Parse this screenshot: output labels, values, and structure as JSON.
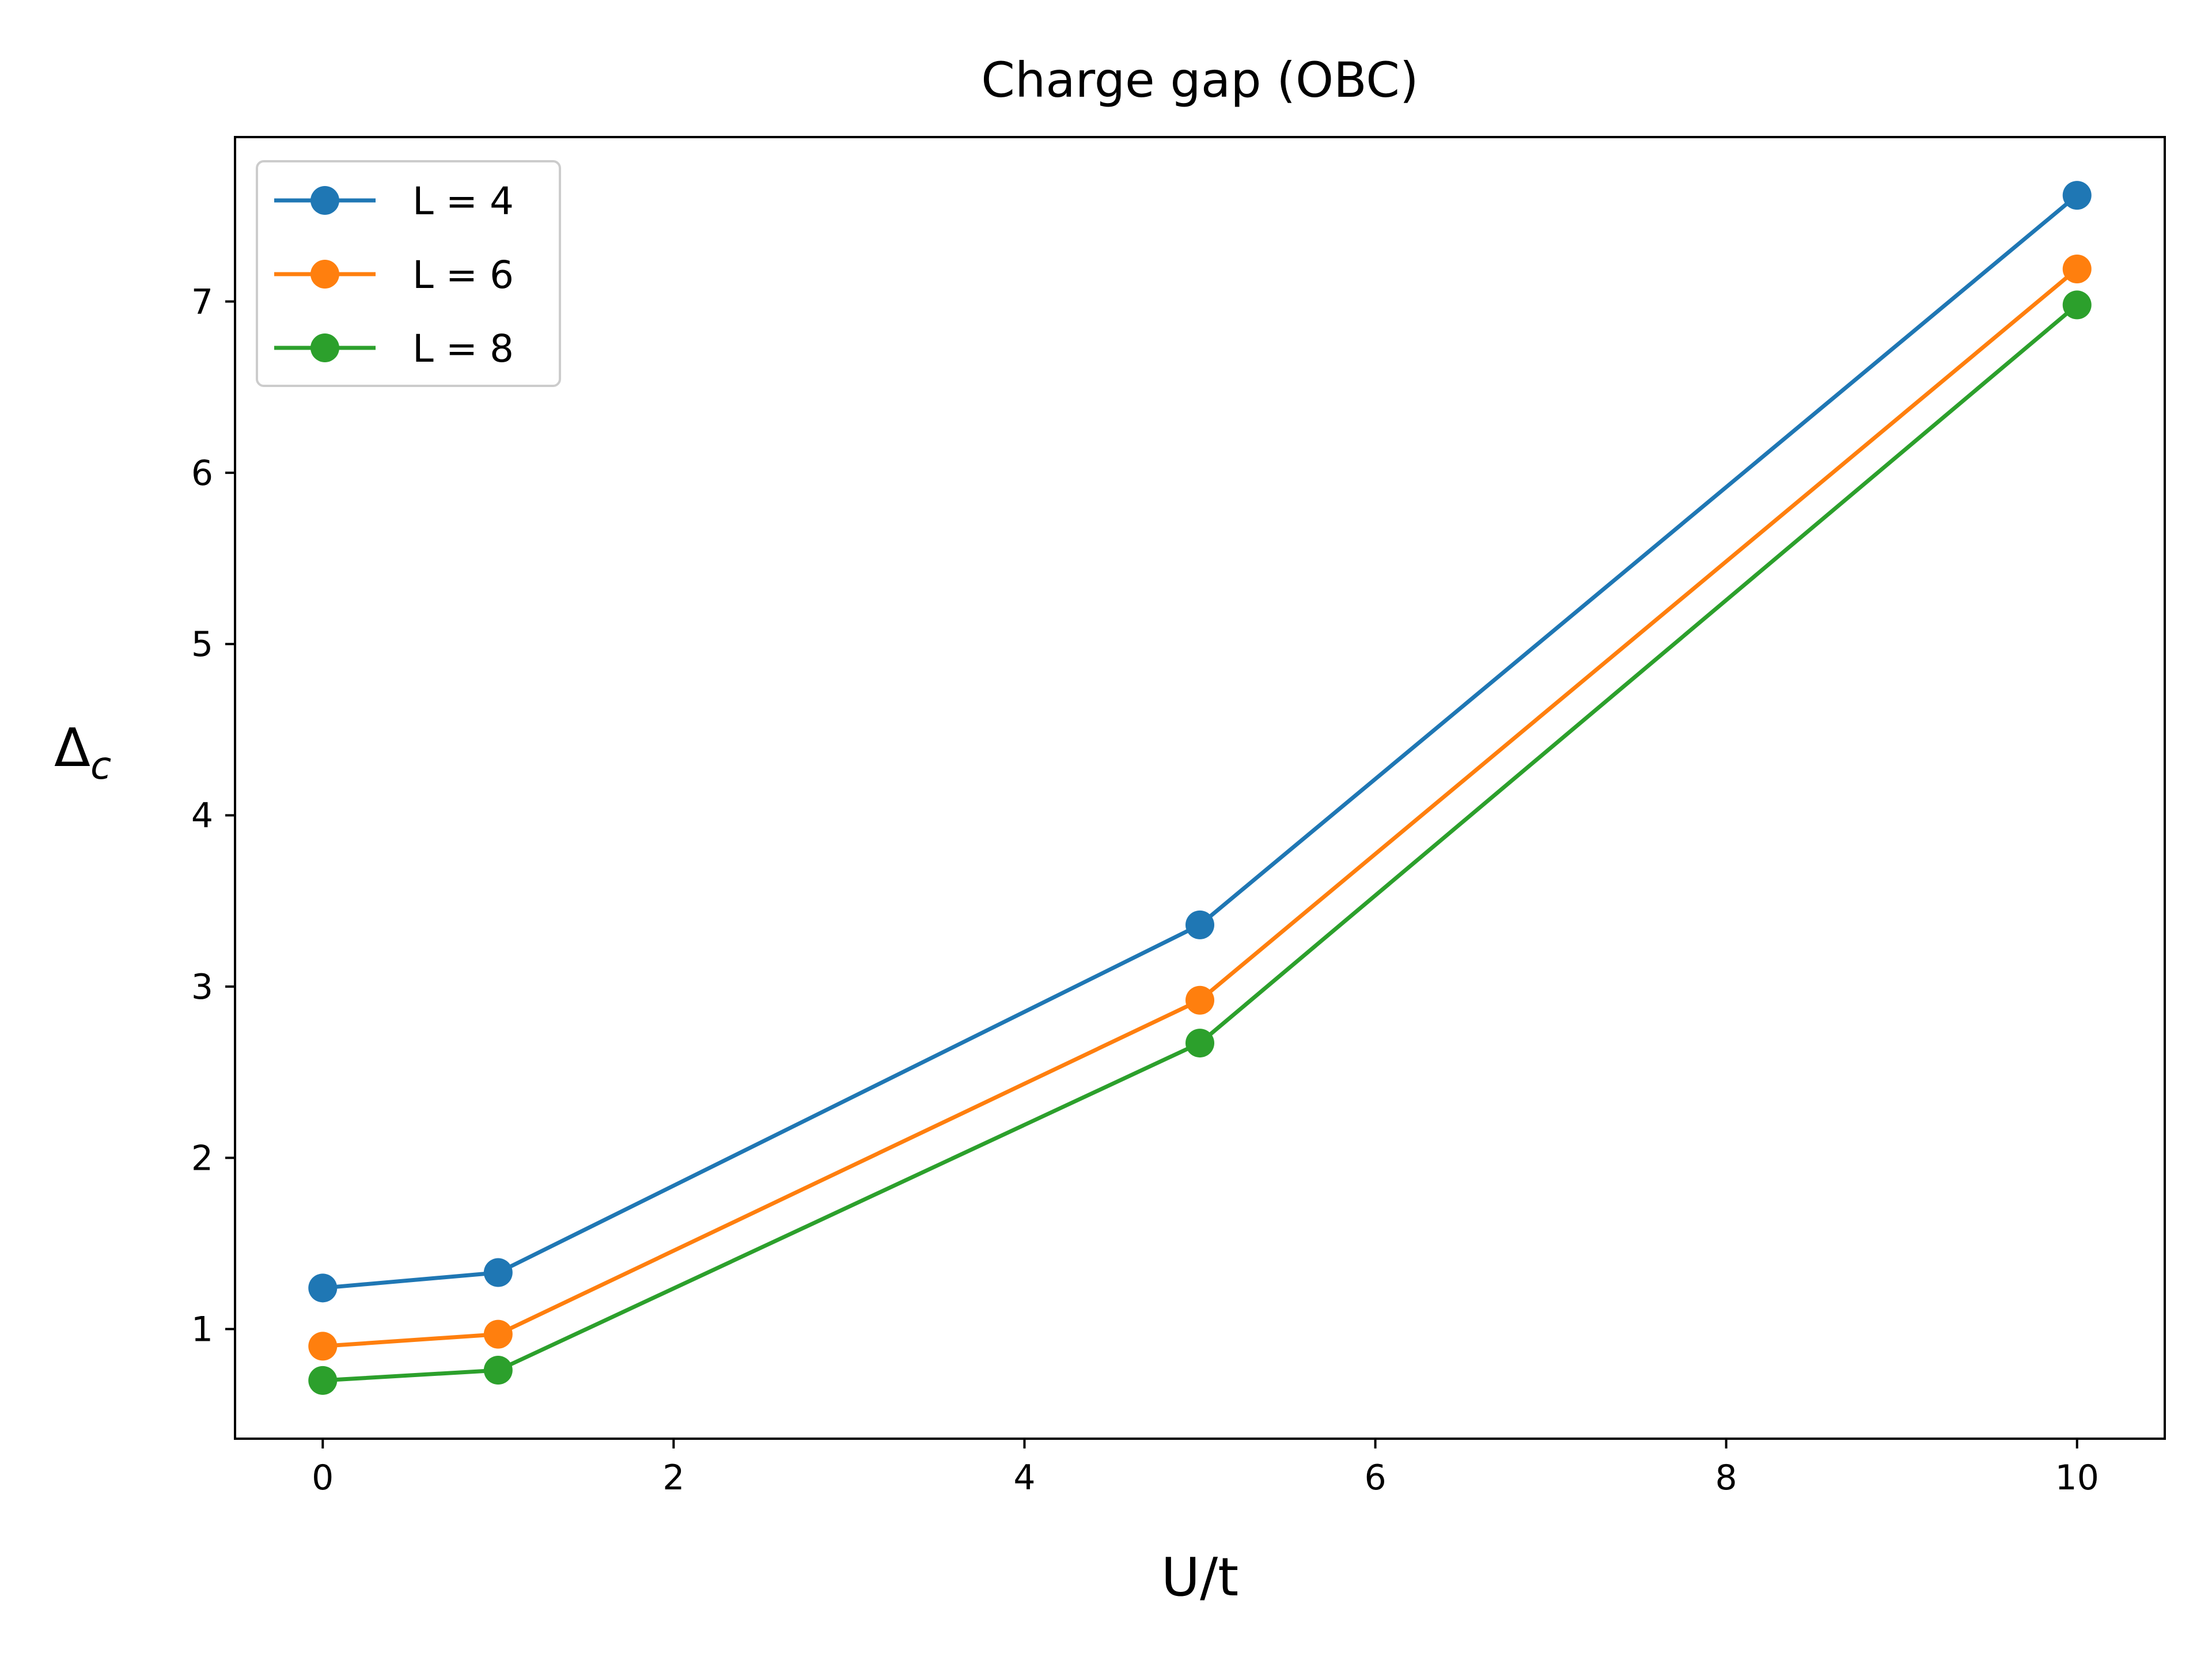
{
  "chart_data": {
    "type": "line",
    "title": "Charge gap (OBC)",
    "xlabel": "U/t",
    "ylabel": "Δc",
    "ylabel_main": "Δ",
    "ylabel_sub": "c",
    "xlim": [
      -0.5,
      10.5
    ],
    "ylim": [
      0.36,
      7.96
    ],
    "xticks": [
      0,
      2,
      4,
      6,
      8,
      10
    ],
    "xtick_labels": [
      "0",
      "2",
      "4",
      "6",
      "8",
      "10"
    ],
    "yticks": [
      1,
      2,
      3,
      4,
      5,
      6,
      7
    ],
    "ytick_labels": [
      "1",
      "2",
      "3",
      "4",
      "5",
      "6",
      "7"
    ],
    "grid": false,
    "legend_position": "top-left",
    "x": [
      0,
      1,
      5,
      10
    ],
    "series": [
      {
        "name": "L = 4",
        "color": "#1f77b4",
        "values": [
          1.24,
          1.33,
          3.36,
          7.62
        ]
      },
      {
        "name": "L = 6",
        "color": "#ff7f0e",
        "values": [
          0.9,
          0.97,
          2.92,
          7.19
        ]
      },
      {
        "name": "L = 8",
        "color": "#2ca02c",
        "values": [
          0.7,
          0.76,
          2.67,
          6.98
        ]
      }
    ]
  }
}
